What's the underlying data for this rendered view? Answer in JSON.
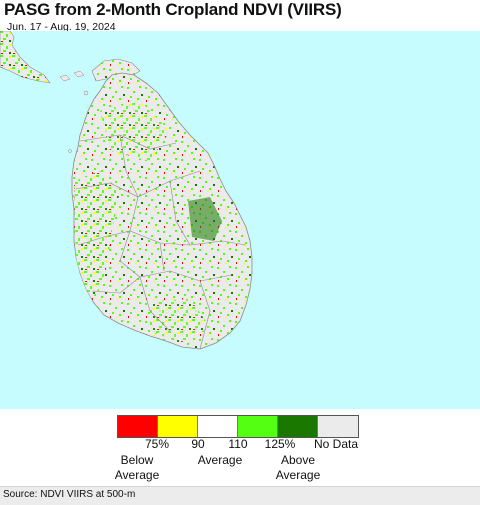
{
  "header": {
    "title": "PASG from 2-Month Cropland NDVI (VIIRS)",
    "date_range": "Jun. 17 - Aug. 19, 2024"
  },
  "colors": {
    "ocean": "#c6fcfd",
    "land_no_data": "#ecebeb",
    "boundary": "#8a8a8a"
  },
  "legend": {
    "swatches": [
      {
        "color": "#ff0000"
      },
      {
        "color": "#ffff00"
      },
      {
        "color": "#ffffff"
      },
      {
        "color": "#55ff11"
      },
      {
        "color": "#1a7800"
      },
      {
        "color": "#ecebeb"
      }
    ],
    "ticks": [
      "75%",
      "90",
      "110",
      "125%",
      "No Data"
    ],
    "categories": {
      "below": "Below\nAverage",
      "average": "Average",
      "above": "Above\nAverage"
    }
  },
  "footer": {
    "source": "Source: NDVI VIIRS at 500-m"
  }
}
